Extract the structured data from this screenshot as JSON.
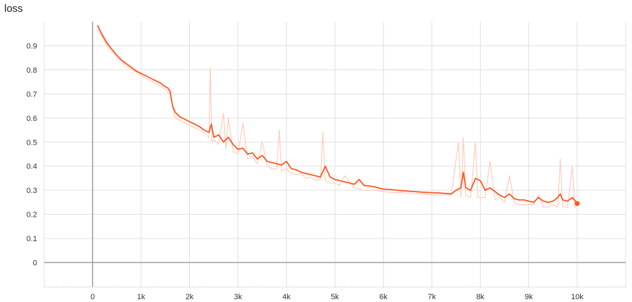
{
  "chart_data": {
    "type": "line",
    "title": "loss",
    "xlim": [
      -1000,
      11000
    ],
    "ylim": [
      -0.1,
      1.0
    ],
    "x_ticks": [
      0,
      1000,
      2000,
      3000,
      4000,
      5000,
      6000,
      7000,
      8000,
      9000,
      10000
    ],
    "x_tick_labels": [
      "0",
      "1k",
      "2k",
      "3k",
      "4k",
      "5k",
      "6k",
      "7k",
      "8k",
      "9k",
      "10k"
    ],
    "y_ticks": [
      0,
      0.1,
      0.2,
      0.3,
      0.4,
      0.5,
      0.6,
      0.7,
      0.8,
      0.9
    ],
    "y_tick_labels": [
      "0",
      "0.1",
      "0.2",
      "0.3",
      "0.4",
      "0.5",
      "0.6",
      "0.7",
      "0.8",
      "0.9"
    ],
    "grid": true,
    "colors": {
      "smoothed": "#ff5722",
      "raw": "#ffccbc",
      "grid": "#e0e0e0",
      "axis": "#9e9e9e"
    },
    "series": [
      {
        "style": "smoothed",
        "x": [
          100,
          200,
          300,
          400,
          500,
          600,
          700,
          800,
          900,
          1000,
          1100,
          1200,
          1300,
          1400,
          1500,
          1550,
          1600,
          1650,
          1700,
          1800,
          1900,
          2000,
          2100,
          2200,
          2300,
          2400,
          2450,
          2500,
          2600,
          2700,
          2800,
          2900,
          3000,
          3100,
          3200,
          3300,
          3400,
          3500,
          3600,
          3700,
          3800,
          3900,
          4000,
          4100,
          4200,
          4300,
          4400,
          4500,
          4600,
          4700,
          4800,
          4900,
          5000,
          5100,
          5200,
          5300,
          5400,
          5500,
          5600,
          5700,
          5800,
          5900,
          6000,
          6200,
          6400,
          6600,
          6800,
          7000,
          7200,
          7400,
          7500,
          7600,
          7650,
          7700,
          7800,
          7900,
          8000,
          8100,
          8200,
          8300,
          8400,
          8500,
          8600,
          8700,
          8800,
          8900,
          9000,
          9100,
          9200,
          9300,
          9400,
          9500,
          9600,
          9650,
          9700,
          9800,
          9900,
          10000
        ],
        "y": [
          0.985,
          0.945,
          0.91,
          0.885,
          0.86,
          0.84,
          0.825,
          0.81,
          0.795,
          0.785,
          0.775,
          0.765,
          0.755,
          0.745,
          0.73,
          0.725,
          0.71,
          0.65,
          0.625,
          0.605,
          0.595,
          0.585,
          0.575,
          0.565,
          0.55,
          0.54,
          0.575,
          0.52,
          0.53,
          0.5,
          0.52,
          0.49,
          0.47,
          0.475,
          0.45,
          0.455,
          0.43,
          0.445,
          0.42,
          0.415,
          0.41,
          0.405,
          0.42,
          0.39,
          0.385,
          0.375,
          0.37,
          0.365,
          0.36,
          0.355,
          0.4,
          0.355,
          0.345,
          0.34,
          0.335,
          0.33,
          0.325,
          0.345,
          0.32,
          0.318,
          0.315,
          0.31,
          0.305,
          0.302,
          0.298,
          0.295,
          0.292,
          0.29,
          0.288,
          0.285,
          0.3,
          0.31,
          0.375,
          0.31,
          0.3,
          0.35,
          0.34,
          0.3,
          0.31,
          0.295,
          0.28,
          0.27,
          0.285,
          0.265,
          0.26,
          0.26,
          0.255,
          0.25,
          0.27,
          0.255,
          0.25,
          0.255,
          0.27,
          0.285,
          0.26,
          0.255,
          0.27,
          0.245
        ]
      },
      {
        "style": "raw",
        "x": [
          100,
          300,
          500,
          700,
          900,
          1100,
          1300,
          1500,
          1600,
          1700,
          1900,
          2100,
          2300,
          2400,
          2430,
          2460,
          2500,
          2600,
          2700,
          2750,
          2800,
          2900,
          3000,
          3100,
          3200,
          3300,
          3400,
          3500,
          3600,
          3700,
          3800,
          3850,
          3900,
          4000,
          4100,
          4200,
          4300,
          4400,
          4500,
          4600,
          4700,
          4750,
          4800,
          4900,
          5000,
          5100,
          5200,
          5400,
          5600,
          5800,
          6000,
          6200,
          6400,
          6600,
          6800,
          7000,
          7200,
          7400,
          7550,
          7600,
          7650,
          7700,
          7800,
          7900,
          7950,
          8000,
          8100,
          8200,
          8300,
          8400,
          8500,
          8600,
          8700,
          8800,
          9000,
          9100,
          9200,
          9300,
          9400,
          9500,
          9600,
          9650,
          9700,
          9800,
          9900,
          9950,
          10000
        ],
        "y": [
          0.97,
          0.9,
          0.85,
          0.815,
          0.79,
          0.765,
          0.745,
          0.72,
          0.7,
          0.6,
          0.58,
          0.56,
          0.54,
          0.52,
          0.81,
          0.5,
          0.51,
          0.49,
          0.62,
          0.47,
          0.6,
          0.46,
          0.45,
          0.58,
          0.43,
          0.44,
          0.41,
          0.5,
          0.4,
          0.39,
          0.39,
          0.55,
          0.38,
          0.39,
          0.37,
          0.365,
          0.37,
          0.35,
          0.355,
          0.34,
          0.345,
          0.54,
          0.34,
          0.33,
          0.33,
          0.32,
          0.36,
          0.31,
          0.3,
          0.3,
          0.295,
          0.29,
          0.29,
          0.285,
          0.285,
          0.28,
          0.28,
          0.28,
          0.5,
          0.27,
          0.52,
          0.28,
          0.27,
          0.5,
          0.27,
          0.27,
          0.27,
          0.42,
          0.26,
          0.27,
          0.25,
          0.36,
          0.25,
          0.24,
          0.24,
          0.24,
          0.28,
          0.23,
          0.23,
          0.24,
          0.23,
          0.43,
          0.23,
          0.23,
          0.4,
          0.23,
          0.24
        ]
      }
    ]
  }
}
